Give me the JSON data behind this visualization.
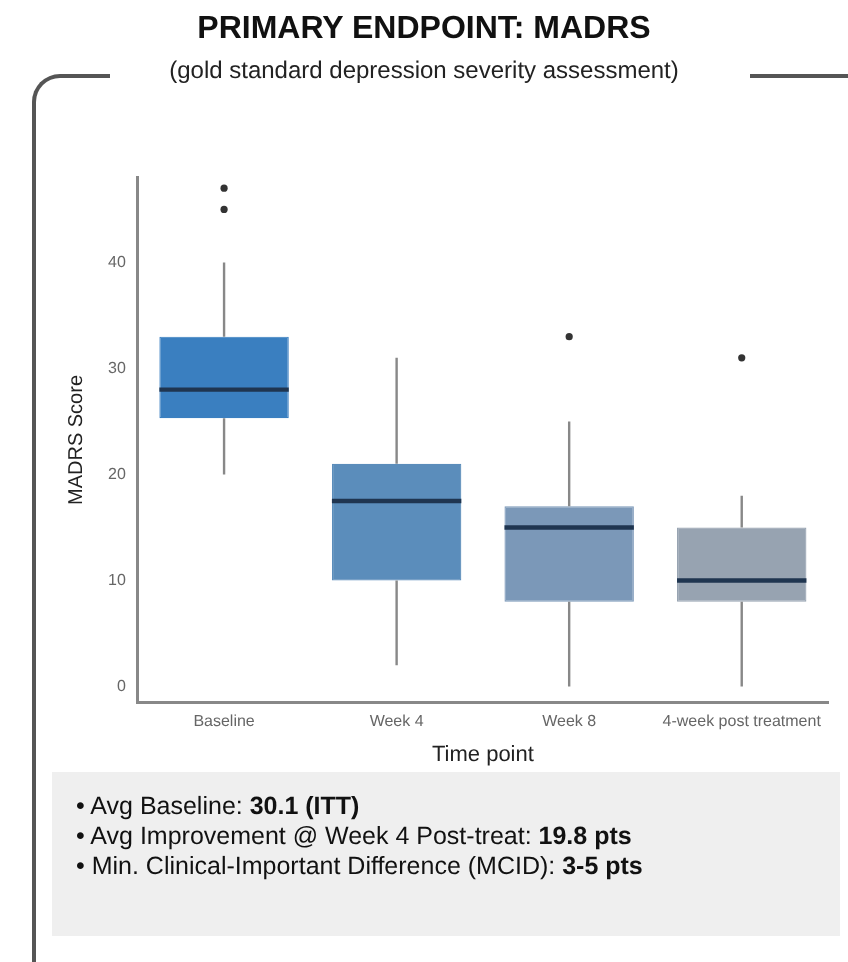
{
  "chart_data": {
    "type": "box",
    "title": "PRIMARY ENDPOINT: MADRS",
    "subtitle": "(gold standard depression severity assessment)",
    "xlabel": "Time point",
    "ylabel": "MADRS Score",
    "categories": [
      "Baseline",
      "Week 4",
      "Week 8",
      "4-week post treatment"
    ],
    "boxes": [
      {
        "low": 20,
        "q1": 25.3,
        "median": 28,
        "q3": 33,
        "high": 40,
        "outliers": [
          45,
          47
        ]
      },
      {
        "low": 2,
        "q1": 10,
        "median": 17.5,
        "q3": 21,
        "high": 31
      },
      {
        "low": 0,
        "q1": 8,
        "median": 15,
        "q3": 17,
        "high": 25,
        "outliers": [
          33
        ]
      },
      {
        "low": 0,
        "q1": 8,
        "median": 10,
        "q3": 15,
        "high": 18,
        "outliers": [
          31
        ]
      }
    ],
    "colors": [
      "#3a7fc0",
      "#5b8dbb",
      "#7b98b8",
      "#97a3b1"
    ],
    "ylim": [
      -1.5,
      48
    ],
    "yticks": [
      0,
      10,
      20,
      30,
      40
    ],
    "grid": false,
    "legend": false,
    "annotations": [
      "• Avg Baseline: 30.1 (ITT)",
      "• Avg Improvement @ Week 4 Post-treat: 19.8 pts",
      "• Min. Clinical-Important Difference (MCID): 3-5 pts"
    ]
  }
}
